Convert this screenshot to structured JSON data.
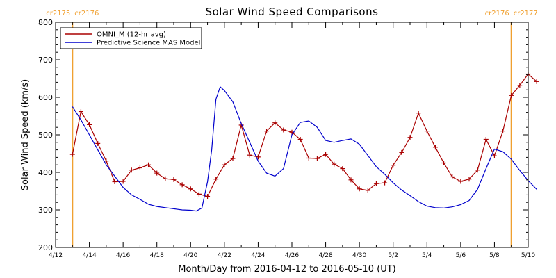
{
  "chart_data": {
    "type": "line",
    "title": "Solar Wind Speed Comparisons",
    "xlabel": "Month/Day from 2016-04-12 to 2016-05-10 (UT)",
    "ylabel": "Solar Wind Speed (km/s)",
    "xlim": [
      "2016-04-12",
      "2016-05-10"
    ],
    "ylim": [
      200,
      800
    ],
    "x_ticks": [
      "4/12",
      "4/14",
      "4/16",
      "4/18",
      "4/20",
      "4/22",
      "4/24",
      "4/26",
      "4/28",
      "4/30",
      "5/2",
      "5/4",
      "5/6",
      "5/8",
      "5/10"
    ],
    "y_ticks": [
      200,
      300,
      400,
      500,
      600,
      700,
      800
    ],
    "legend_position": "top-left",
    "markers": [
      {
        "x": "2016-04-13",
        "labels": [
          "cr2175",
          "cr2176"
        ],
        "color": "#f0a030"
      },
      {
        "x": "2016-05-09",
        "labels": [
          "cr2176",
          "cr2177"
        ],
        "color": "#f0a030"
      }
    ],
    "series": [
      {
        "name": "OMNI_M (12-hr avg)",
        "color": "#aa0000",
        "marker": "plus",
        "points": [
          [
            "2016-04-13 00:00",
            448
          ],
          [
            "2016-04-13 12:00",
            562
          ],
          [
            "2016-04-14 00:00",
            527
          ],
          [
            "2016-04-14 12:00",
            477
          ],
          [
            "2016-04-15 00:00",
            430
          ],
          [
            "2016-04-15 12:00",
            375
          ],
          [
            "2016-04-16 00:00",
            376
          ],
          [
            "2016-04-16 12:00",
            406
          ],
          [
            "2016-04-17 00:00",
            412
          ],
          [
            "2016-04-17 12:00",
            420
          ],
          [
            "2016-04-18 00:00",
            398
          ],
          [
            "2016-04-18 12:00",
            383
          ],
          [
            "2016-04-19 00:00",
            381
          ],
          [
            "2016-04-19 12:00",
            367
          ],
          [
            "2016-04-20 00:00",
            356
          ],
          [
            "2016-04-20 12:00",
            342
          ],
          [
            "2016-04-21 00:00",
            336
          ],
          [
            "2016-04-21 12:00",
            382
          ],
          [
            "2016-04-22 00:00",
            420
          ],
          [
            "2016-04-22 12:00",
            437
          ],
          [
            "2016-04-23 00:00",
            526
          ],
          [
            "2016-04-23 12:00",
            446
          ],
          [
            "2016-04-24 00:00",
            441
          ],
          [
            "2016-04-24 12:00",
            510
          ],
          [
            "2016-04-25 00:00",
            532
          ],
          [
            "2016-04-25 12:00",
            513
          ],
          [
            "2016-04-26 00:00",
            507
          ],
          [
            "2016-04-26 12:00",
            488
          ],
          [
            "2016-04-27 00:00",
            438
          ],
          [
            "2016-04-27 12:00",
            437
          ],
          [
            "2016-04-28 00:00",
            448
          ],
          [
            "2016-04-28 12:00",
            422
          ],
          [
            "2016-04-29 00:00",
            410
          ],
          [
            "2016-04-29 12:00",
            380
          ],
          [
            "2016-04-30 00:00",
            356
          ],
          [
            "2016-04-30 12:00",
            352
          ],
          [
            "2016-05-01 00:00",
            370
          ],
          [
            "2016-05-01 12:00",
            372
          ],
          [
            "2016-05-02 00:00",
            419
          ],
          [
            "2016-05-02 12:00",
            453
          ],
          [
            "2016-05-03 00:00",
            493
          ],
          [
            "2016-05-03 12:00",
            558
          ],
          [
            "2016-05-04 00:00",
            510
          ],
          [
            "2016-05-04 12:00",
            467
          ],
          [
            "2016-05-05 00:00",
            425
          ],
          [
            "2016-05-05 12:00",
            388
          ],
          [
            "2016-05-06 00:00",
            376
          ],
          [
            "2016-05-06 12:00",
            382
          ],
          [
            "2016-05-07 00:00",
            406
          ],
          [
            "2016-05-07 12:00",
            488
          ],
          [
            "2016-05-08 00:00",
            444
          ],
          [
            "2016-05-08 12:00",
            510
          ],
          [
            "2016-05-09 00:00",
            605
          ],
          [
            "2016-05-09 12:00",
            632
          ],
          [
            "2016-05-10 00:00",
            662
          ],
          [
            "2016-05-10 12:00",
            642
          ]
        ]
      },
      {
        "name": "Predictive Science MAS Model",
        "color": "#0000cc",
        "marker": "none",
        "points": [
          [
            "2016-04-13 00:00",
            575
          ],
          [
            "2016-04-13 12:00",
            540
          ],
          [
            "2016-04-14 00:00",
            500
          ],
          [
            "2016-04-14 12:00",
            460
          ],
          [
            "2016-04-15 00:00",
            420
          ],
          [
            "2016-04-15 12:00",
            390
          ],
          [
            "2016-04-16 00:00",
            360
          ],
          [
            "2016-04-16 12:00",
            340
          ],
          [
            "2016-04-17 00:00",
            328
          ],
          [
            "2016-04-17 12:00",
            315
          ],
          [
            "2016-04-18 00:00",
            309
          ],
          [
            "2016-04-18 12:00",
            306
          ],
          [
            "2016-04-19 00:00",
            303
          ],
          [
            "2016-04-19 12:00",
            300
          ],
          [
            "2016-04-20 00:00",
            299
          ],
          [
            "2016-04-20 08:00",
            297
          ],
          [
            "2016-04-20 16:00",
            305
          ],
          [
            "2016-04-21 00:00",
            375
          ],
          [
            "2016-04-21 06:00",
            460
          ],
          [
            "2016-04-21 12:00",
            595
          ],
          [
            "2016-04-21 18:00",
            628
          ],
          [
            "2016-04-22 00:00",
            618
          ],
          [
            "2016-04-22 12:00",
            588
          ],
          [
            "2016-04-23 00:00",
            530
          ],
          [
            "2016-04-23 12:00",
            480
          ],
          [
            "2016-04-24 00:00",
            430
          ],
          [
            "2016-04-24 12:00",
            398
          ],
          [
            "2016-04-25 00:00",
            390
          ],
          [
            "2016-04-25 12:00",
            410
          ],
          [
            "2016-04-26 00:00",
            500
          ],
          [
            "2016-04-26 12:00",
            533
          ],
          [
            "2016-04-27 00:00",
            537
          ],
          [
            "2016-04-27 12:00",
            520
          ],
          [
            "2016-04-28 00:00",
            485
          ],
          [
            "2016-04-28 12:00",
            480
          ],
          [
            "2016-04-29 00:00",
            485
          ],
          [
            "2016-04-29 12:00",
            489
          ],
          [
            "2016-04-30 00:00",
            475
          ],
          [
            "2016-04-30 12:00",
            445
          ],
          [
            "2016-05-01 00:00",
            415
          ],
          [
            "2016-05-01 12:00",
            395
          ],
          [
            "2016-05-02 00:00",
            372
          ],
          [
            "2016-05-02 12:00",
            353
          ],
          [
            "2016-05-03 00:00",
            338
          ],
          [
            "2016-05-03 12:00",
            322
          ],
          [
            "2016-05-04 00:00",
            310
          ],
          [
            "2016-05-04 12:00",
            306
          ],
          [
            "2016-05-05 00:00",
            305
          ],
          [
            "2016-05-05 12:00",
            308
          ],
          [
            "2016-05-06 00:00",
            314
          ],
          [
            "2016-05-06 12:00",
            325
          ],
          [
            "2016-05-07 00:00",
            355
          ],
          [
            "2016-05-07 12:00",
            410
          ],
          [
            "2016-05-08 00:00",
            462
          ],
          [
            "2016-05-08 12:00",
            455
          ],
          [
            "2016-05-09 00:00",
            435
          ],
          [
            "2016-05-09 12:00",
            405
          ],
          [
            "2016-05-10 00:00",
            378
          ],
          [
            "2016-05-10 12:00",
            355
          ]
        ]
      }
    ]
  }
}
